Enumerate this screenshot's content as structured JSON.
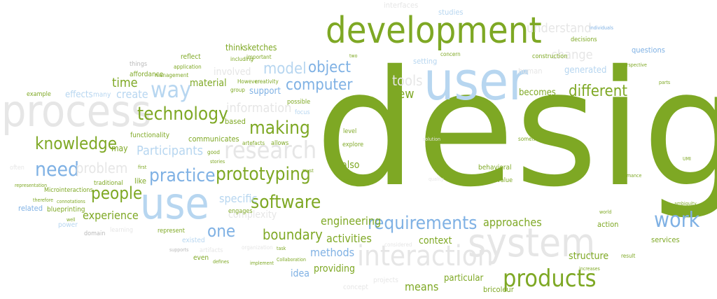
{
  "palette": {
    "green": "#7ea824",
    "dark_green": "#5f8a16",
    "blue": "#7fb1e4",
    "light_blue": "#b7d6f0",
    "gray": "#b9b9b9",
    "light_gray": "#e6e6e6"
  },
  "words": [
    {
      "text": "design",
      "color": "green"
    },
    {
      "text": "development",
      "color": "green"
    },
    {
      "text": "user",
      "color": "light_blue"
    },
    {
      "text": "process",
      "color": "light_gray"
    },
    {
      "text": "system",
      "color": "light_gray"
    },
    {
      "text": "use",
      "color": "light_blue"
    },
    {
      "text": "products",
      "color": "green"
    },
    {
      "text": "interaction",
      "color": "light_gray"
    },
    {
      "text": "requirements",
      "color": "blue"
    },
    {
      "text": "technology",
      "color": "green"
    },
    {
      "text": "research",
      "color": "light_gray"
    },
    {
      "text": "way",
      "color": "light_blue"
    },
    {
      "text": "prototyping",
      "color": "green"
    },
    {
      "text": "practice",
      "color": "blue"
    },
    {
      "text": "software",
      "color": "green"
    },
    {
      "text": "making",
      "color": "green"
    },
    {
      "text": "knowledge",
      "color": "green"
    },
    {
      "text": "people",
      "color": "green"
    },
    {
      "text": "need",
      "color": "blue"
    },
    {
      "text": "work",
      "color": "blue"
    },
    {
      "text": "one",
      "color": "blue"
    },
    {
      "text": "boundary",
      "color": "green"
    },
    {
      "text": "computer",
      "color": "blue"
    },
    {
      "text": "object",
      "color": "blue"
    },
    {
      "text": "model",
      "color": "light_blue"
    },
    {
      "text": "different",
      "color": "green"
    },
    {
      "text": "understand",
      "color": "light_gray"
    },
    {
      "text": "tools",
      "color": "light_gray"
    },
    {
      "text": "new",
      "color": "green"
    },
    {
      "text": "change",
      "color": "light_gray"
    },
    {
      "text": "problem",
      "color": "light_gray"
    },
    {
      "text": "information",
      "color": "light_gray"
    },
    {
      "text": "Participants",
      "color": "light_blue"
    },
    {
      "text": "time",
      "color": "green"
    },
    {
      "text": "create",
      "color": "light_blue"
    },
    {
      "text": "experience",
      "color": "green"
    },
    {
      "text": "engineering",
      "color": "green"
    },
    {
      "text": "activities",
      "color": "green"
    },
    {
      "text": "approaches",
      "color": "green"
    },
    {
      "text": "methods",
      "color": "blue"
    },
    {
      "text": "means",
      "color": "green"
    },
    {
      "text": "context",
      "color": "green"
    },
    {
      "text": "structure",
      "color": "green"
    },
    {
      "text": "providing",
      "color": "green"
    },
    {
      "text": "idea",
      "color": "blue"
    },
    {
      "text": "particular",
      "color": "green"
    },
    {
      "text": "specific",
      "color": "light_blue"
    },
    {
      "text": "complexity",
      "color": "light_gray"
    },
    {
      "text": "effects",
      "color": "light_blue"
    },
    {
      "text": "material",
      "color": "green"
    },
    {
      "text": "involved",
      "color": "light_gray"
    },
    {
      "text": "support",
      "color": "blue"
    },
    {
      "text": "becomes",
      "color": "green"
    },
    {
      "text": "generated",
      "color": "light_blue"
    },
    {
      "text": "also",
      "color": "green"
    },
    {
      "text": "sketches",
      "color": "green"
    },
    {
      "text": "think",
      "color": "green"
    },
    {
      "text": "setting",
      "color": "light_blue"
    },
    {
      "text": "questions",
      "color": "blue"
    },
    {
      "text": "studies",
      "color": "light_blue"
    },
    {
      "text": "interfaces",
      "color": "light_gray"
    },
    {
      "text": "human",
      "color": "light_gray"
    },
    {
      "text": "affordance",
      "color": "green"
    },
    {
      "text": "reflect",
      "color": "green"
    },
    {
      "text": "things",
      "color": "gray"
    },
    {
      "text": "many",
      "color": "light_blue"
    },
    {
      "text": "example",
      "color": "green"
    },
    {
      "text": "functionality",
      "color": "green"
    },
    {
      "text": "communicates",
      "color": "green"
    },
    {
      "text": "based",
      "color": "green"
    },
    {
      "text": "may",
      "color": "green"
    },
    {
      "text": "traditional",
      "color": "green"
    },
    {
      "text": "like",
      "color": "green"
    },
    {
      "text": "related",
      "color": "blue"
    },
    {
      "text": "power",
      "color": "light_blue"
    },
    {
      "text": "blueprinting",
      "color": "green"
    },
    {
      "text": "Microinteractions",
      "color": "green"
    },
    {
      "text": "often",
      "color": "light_gray"
    },
    {
      "text": "represent",
      "color": "green"
    },
    {
      "text": "existed",
      "color": "light_blue"
    },
    {
      "text": "even",
      "color": "green"
    },
    {
      "text": "engages",
      "color": "green"
    },
    {
      "text": "action",
      "color": "green"
    },
    {
      "text": "services",
      "color": "green"
    },
    {
      "text": "projects",
      "color": "light_gray"
    },
    {
      "text": "bricoleur",
      "color": "green"
    },
    {
      "text": "concept",
      "color": "light_gray"
    },
    {
      "text": "decisions",
      "color": "green"
    },
    {
      "text": "construction",
      "color": "green"
    },
    {
      "text": "concern",
      "color": "green"
    },
    {
      "text": "level",
      "color": "green"
    },
    {
      "text": "explore",
      "color": "green"
    },
    {
      "text": "behavioral",
      "color": "green"
    },
    {
      "text": "value",
      "color": "green"
    },
    {
      "text": "something",
      "color": "green"
    },
    {
      "text": "focus",
      "color": "light_blue"
    },
    {
      "text": "possible",
      "color": "green"
    },
    {
      "text": "allows",
      "color": "green"
    },
    {
      "text": "artefacts",
      "color": "green"
    },
    {
      "text": "including",
      "color": "green"
    },
    {
      "text": "important",
      "color": "green"
    },
    {
      "text": "However",
      "color": "green"
    },
    {
      "text": "creativity",
      "color": "green"
    },
    {
      "text": "group",
      "color": "green"
    },
    {
      "text": "management",
      "color": "green"
    },
    {
      "text": "application",
      "color": "green"
    },
    {
      "text": "good",
      "color": "green"
    },
    {
      "text": "stories",
      "color": "green"
    },
    {
      "text": "first",
      "color": "green"
    },
    {
      "text": "therefore",
      "color": "green"
    },
    {
      "text": "connotations",
      "color": "green"
    },
    {
      "text": "representation",
      "color": "green"
    },
    {
      "text": "well",
      "color": "green"
    },
    {
      "text": "domain",
      "color": "gray"
    },
    {
      "text": "learning",
      "color": "light_gray"
    },
    {
      "text": "artifacts",
      "color": "light_gray"
    },
    {
      "text": "defines",
      "color": "green"
    },
    {
      "text": "implement",
      "color": "green"
    },
    {
      "text": "Collaboration",
      "color": "green"
    },
    {
      "text": "task",
      "color": "green"
    },
    {
      "text": "considered",
      "color": "light_gray"
    },
    {
      "text": "result",
      "color": "green"
    },
    {
      "text": "world",
      "color": "green"
    },
    {
      "text": "performance",
      "color": "green"
    },
    {
      "text": "individuals",
      "color": "blue"
    },
    {
      "text": "parts",
      "color": "green"
    },
    {
      "text": "UMI",
      "color": "green"
    },
    {
      "text": "ambiguity",
      "color": "green"
    },
    {
      "text": "two",
      "color": "green"
    },
    {
      "text": "solution",
      "color": "light_gray"
    },
    {
      "text": "analysis",
      "color": "green"
    },
    {
      "text": "must",
      "color": "green"
    },
    {
      "text": "quality",
      "color": "light_gray"
    },
    {
      "text": "organization",
      "color": "light_gray"
    },
    {
      "text": "supports",
      "color": "gray"
    },
    {
      "text": "perspective",
      "color": "green"
    },
    {
      "text": "increases",
      "color": "green"
    }
  ]
}
